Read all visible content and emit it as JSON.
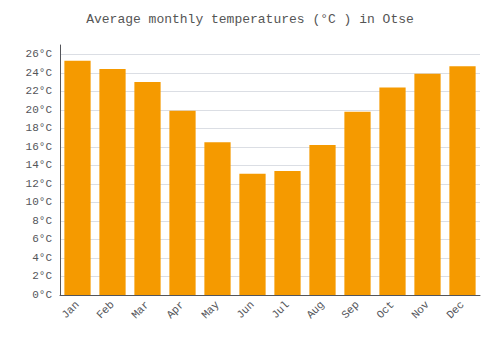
{
  "chart_data": {
    "type": "bar",
    "title": "Average monthly temperatures (°C ) in Otse",
    "categories": [
      "Jan",
      "Feb",
      "Mar",
      "Apr",
      "May",
      "Jun",
      "Jul",
      "Aug",
      "Sep",
      "Oct",
      "Nov",
      "Dec"
    ],
    "values": [
      25.3,
      24.4,
      23.0,
      19.9,
      16.5,
      13.1,
      13.4,
      16.2,
      19.8,
      22.4,
      23.9,
      24.7
    ],
    "color": "#F59A00",
    "ylim": [
      0,
      27
    ],
    "yticks": [
      {
        "value": 0,
        "label": "0°C"
      },
      {
        "value": 2,
        "label": "2°C"
      },
      {
        "value": 4,
        "label": "4°C"
      },
      {
        "value": 6,
        "label": "6°C"
      },
      {
        "value": 8,
        "label": "8°C"
      },
      {
        "value": 10,
        "label": "10°C"
      },
      {
        "value": 12,
        "label": "12°C"
      },
      {
        "value": 14,
        "label": "14°C"
      },
      {
        "value": 16,
        "label": "16°C"
      },
      {
        "value": 18,
        "label": "18°C"
      },
      {
        "value": 20,
        "label": "20°C"
      },
      {
        "value": 22,
        "label": "22°C"
      },
      {
        "value": 24,
        "label": "24°C"
      },
      {
        "value": 26,
        "label": "26°C"
      }
    ],
    "grid": true
  }
}
